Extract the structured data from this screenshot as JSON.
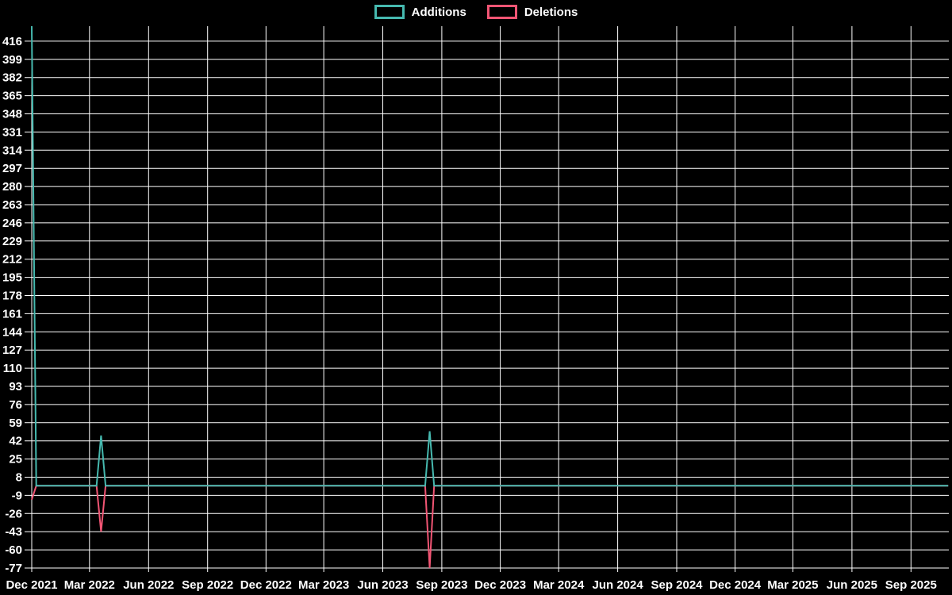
{
  "chart_data": {
    "type": "line",
    "legend": [
      {
        "label": "Additions",
        "color": "#46b9af"
      },
      {
        "label": "Deletions",
        "color": "#f25574"
      }
    ],
    "legend_position": "top-center",
    "grid": true,
    "colors": {
      "background": "#000000",
      "grid": "#ffffff",
      "text": "#ffffff",
      "additions": "#46b9af",
      "deletions": "#f25574"
    },
    "x_range": {
      "start": "2021-11-26",
      "end": "2025-10-30"
    },
    "x_ticks": [
      {
        "label": "Dec 2021",
        "date": "2021-12-01"
      },
      {
        "label": "Mar 2022",
        "date": "2022-03-01"
      },
      {
        "label": "Jun 2022",
        "date": "2022-06-01"
      },
      {
        "label": "Sep 2022",
        "date": "2022-09-01"
      },
      {
        "label": "Dec 2022",
        "date": "2022-12-01"
      },
      {
        "label": "Mar 2023",
        "date": "2023-03-01"
      },
      {
        "label": "Jun 2023",
        "date": "2023-06-01"
      },
      {
        "label": "Sep 2023",
        "date": "2023-09-01"
      },
      {
        "label": "Dec 2023",
        "date": "2023-12-01"
      },
      {
        "label": "Mar 2024",
        "date": "2024-03-01"
      },
      {
        "label": "Jun 2024",
        "date": "2024-06-01"
      },
      {
        "label": "Sep 2024",
        "date": "2024-09-01"
      },
      {
        "label": "Dec 2024",
        "date": "2024-12-01"
      },
      {
        "label": "Mar 2025",
        "date": "2025-03-01"
      },
      {
        "label": "Jun 2025",
        "date": "2025-06-01"
      },
      {
        "label": "Sep 2025",
        "date": "2025-09-01"
      }
    ],
    "y_axis": {
      "min": -77,
      "max": 430,
      "tick_step": 17,
      "ticks": [
        -77,
        -60,
        -43,
        -26,
        -9,
        8,
        25,
        42,
        59,
        76,
        93,
        110,
        127,
        144,
        161,
        178,
        195,
        212,
        229,
        246,
        263,
        280,
        297,
        314,
        331,
        348,
        365,
        382,
        399,
        416
      ]
    },
    "series": [
      {
        "name": "Additions",
        "color": "#46b9af",
        "points": [
          [
            "2021-12-01",
            430
          ],
          [
            "2021-12-08",
            0
          ],
          [
            "2022-03-12",
            0
          ],
          [
            "2022-03-19",
            47
          ],
          [
            "2022-03-26",
            0
          ],
          [
            "2023-08-06",
            0
          ],
          [
            "2023-08-13",
            51
          ],
          [
            "2023-08-20",
            0
          ],
          [
            "2025-10-29",
            0
          ]
        ]
      },
      {
        "name": "Deletions",
        "color": "#f25574",
        "points": [
          [
            "2021-12-01",
            -13
          ],
          [
            "2021-12-08",
            0
          ],
          [
            "2022-03-12",
            0
          ],
          [
            "2022-03-19",
            -43
          ],
          [
            "2022-03-26",
            0
          ],
          [
            "2023-08-06",
            0
          ],
          [
            "2023-08-13",
            -77
          ],
          [
            "2023-08-20",
            0
          ],
          [
            "2025-10-29",
            0
          ]
        ]
      }
    ]
  }
}
